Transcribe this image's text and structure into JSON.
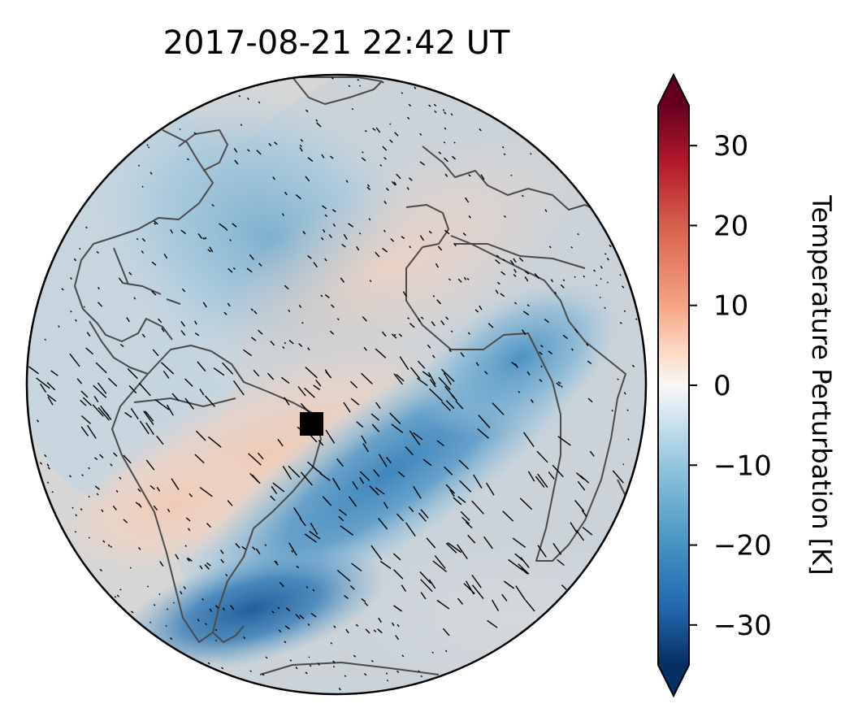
{
  "title": "2017-08-21  22:42 UT",
  "colorbar": {
    "label": "Temperature Perturbation [K]",
    "range": [
      -35,
      35
    ],
    "extend": "both",
    "ticks": [
      {
        "value": 30,
        "label": "30"
      },
      {
        "value": 20,
        "label": "20"
      },
      {
        "value": 10,
        "label": "10"
      },
      {
        "value": 0,
        "label": "0"
      },
      {
        "value": -10,
        "label": "−10"
      },
      {
        "value": -20,
        "label": "−20"
      },
      {
        "value": -30,
        "label": "−30"
      }
    ],
    "colormap_stops": [
      {
        "value": -35,
        "color": "#053061"
      },
      {
        "value": -28,
        "color": "#2166ac"
      },
      {
        "value": -20,
        "color": "#4393c3"
      },
      {
        "value": -10,
        "color": "#92c5de"
      },
      {
        "value": -4,
        "color": "#d1e5f0"
      },
      {
        "value": 0,
        "color": "#f7f7f7"
      },
      {
        "value": 4,
        "color": "#fddbc7"
      },
      {
        "value": 10,
        "color": "#f4a582"
      },
      {
        "value": 20,
        "color": "#d6604d"
      },
      {
        "value": 28,
        "color": "#b2182b"
      },
      {
        "value": 35,
        "color": "#67001f"
      }
    ]
  },
  "map": {
    "projection": "orthographic",
    "colormap": "RdBu_r",
    "ocean_color": "#d6d6d6",
    "coastline_color": "#4a4a4a",
    "marker": {
      "shape": "square",
      "color": "#000000"
    }
  }
}
